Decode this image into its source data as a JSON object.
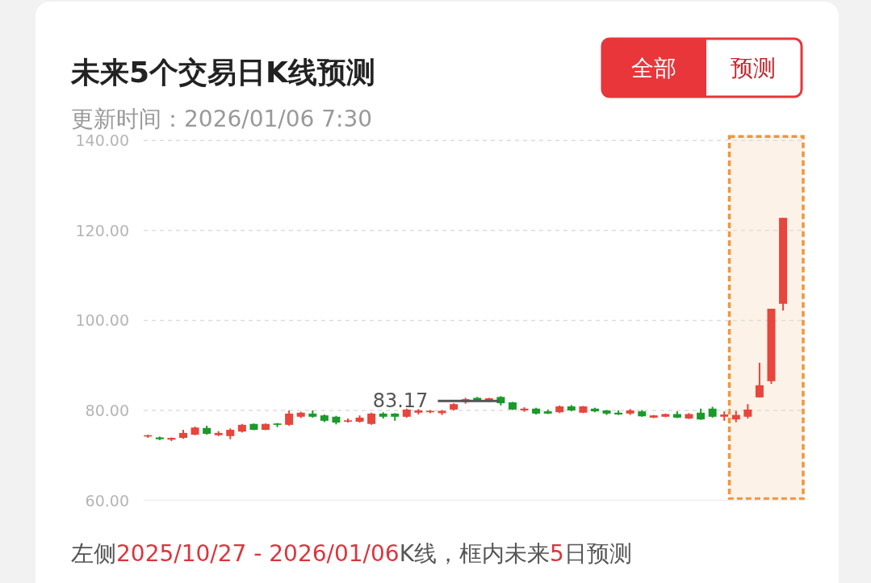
{
  "chart_data": {
    "type": "candlestick",
    "title": "未来5个交易日K线预测",
    "subtitle": "更新时间：2026/01/06 7:30",
    "categories": [
      null,
      null,
      null,
      null,
      null,
      null,
      null,
      null,
      null,
      null,
      null,
      null,
      null,
      null,
      null,
      null,
      null,
      null,
      null,
      null,
      null,
      null,
      null,
      null,
      null,
      null,
      null,
      null,
      null,
      null,
      null,
      null,
      null,
      null,
      null,
      null,
      null,
      null,
      null,
      null,
      null,
      null,
      null,
      null,
      null,
      null,
      null,
      null,
      null,
      null,
      null,
      null,
      null,
      null,
      null
    ],
    "ohlc": [
      [
        74.2,
        74.6,
        73.9,
        74.5
      ],
      [
        74.0,
        74.2,
        73.4,
        73.6
      ],
      [
        73.5,
        74.0,
        73.2,
        73.9
      ],
      [
        73.9,
        75.7,
        73.7,
        75.0
      ],
      [
        74.6,
        76.4,
        74.5,
        76.2
      ],
      [
        76.1,
        76.6,
        74.6,
        74.8
      ],
      [
        74.5,
        75.4,
        74.3,
        75.0
      ],
      [
        74.3,
        76.0,
        73.6,
        75.7
      ],
      [
        75.3,
        77.0,
        75.1,
        76.8
      ],
      [
        77.0,
        77.1,
        75.6,
        75.7
      ],
      [
        75.7,
        77.1,
        75.6,
        77.0
      ],
      [
        77.1,
        77.2,
        76.3,
        76.8
      ],
      [
        76.8,
        80.0,
        76.6,
        79.3
      ],
      [
        78.6,
        79.7,
        78.3,
        79.5
      ],
      [
        79.3,
        80.0,
        78.4,
        78.6
      ],
      [
        78.9,
        79.1,
        77.4,
        77.7
      ],
      [
        78.6,
        78.8,
        76.9,
        77.3
      ],
      [
        77.5,
        78.2,
        77.3,
        77.8
      ],
      [
        77.5,
        78.9,
        77.3,
        78.4
      ],
      [
        77.0,
        79.5,
        76.8,
        79.3
      ],
      [
        79.3,
        79.6,
        78.2,
        78.6
      ],
      [
        79.3,
        79.4,
        77.7,
        78.6
      ],
      [
        78.6,
        80.4,
        78.4,
        80.2
      ],
      [
        79.5,
        80.3,
        79.1,
        80.0
      ],
      [
        79.6,
        80.1,
        79.4,
        79.9
      ],
      [
        79.4,
        80.1,
        79.0,
        79.9
      ],
      [
        80.2,
        81.6,
        80.0,
        81.4
      ],
      [
        81.9,
        82.8,
        81.5,
        82.5
      ],
      [
        82.8,
        83.0,
        82.2,
        82.3
      ],
      [
        82.0,
        82.8,
        81.9,
        82.7
      ],
      [
        83.0,
        83.17,
        81.1,
        81.6
      ],
      [
        81.8,
        81.9,
        80.1,
        80.2
      ],
      [
        80.0,
        80.7,
        79.7,
        80.4
      ],
      [
        80.4,
        80.6,
        79.1,
        79.3
      ],
      [
        79.8,
        80.2,
        79.2,
        79.3
      ],
      [
        79.6,
        81.1,
        79.4,
        80.9
      ],
      [
        80.9,
        81.2,
        79.8,
        80.0
      ],
      [
        79.5,
        81.0,
        79.4,
        80.9
      ],
      [
        80.4,
        80.6,
        79.6,
        79.8
      ],
      [
        80.0,
        80.1,
        79.0,
        79.3
      ],
      [
        79.5,
        80.0,
        79.0,
        79.1
      ],
      [
        79.3,
        80.3,
        79.0,
        80.0
      ],
      [
        79.8,
        80.1,
        78.6,
        78.7
      ],
      [
        78.4,
        79.0,
        78.3,
        78.9
      ],
      [
        78.6,
        79.3,
        78.5,
        79.2
      ],
      [
        79.2,
        79.8,
        78.3,
        78.4
      ],
      [
        78.2,
        79.4,
        78.1,
        79.2
      ],
      [
        79.5,
        80.4,
        77.9,
        78.0
      ],
      [
        80.4,
        80.8,
        78.4,
        78.6
      ],
      [
        78.6,
        79.8,
        77.7,
        79.1
      ],
      [
        78.0,
        79.9,
        77.4,
        79.0
      ],
      [
        78.6,
        81.4,
        78.2,
        80.2
      ],
      [
        82.9,
        90.6,
        82.9,
        85.6
      ],
      [
        86.5,
        102.6,
        85.9,
        102.6
      ],
      [
        103.7,
        122.8,
        102.2,
        122.8
      ]
    ],
    "colors": [
      "#e8453c",
      "#1a9a2a",
      "#e8453c",
      "#e8453c",
      "#e8453c",
      "#1a9a2a",
      "#e8453c",
      "#e8453c",
      "#e8453c",
      "#1a9a2a",
      "#e8453c",
      "#1a9a2a",
      "#e8453c",
      "#e8453c",
      "#1a9a2a",
      "#1a9a2a",
      "#1a9a2a",
      "#e8453c",
      "#e8453c",
      "#e8453c",
      "#1a9a2a",
      "#1a9a2a",
      "#e8453c",
      "#e8453c",
      "#e8453c",
      "#e8453c",
      "#e8453c",
      "#e8453c",
      "#1a9a2a",
      "#e8453c",
      "#1a9a2a",
      "#1a9a2a",
      "#e8453c",
      "#1a9a2a",
      "#1a9a2a",
      "#e8453c",
      "#1a9a2a",
      "#e8453c",
      "#1a9a2a",
      "#1a9a2a",
      "#1a9a2a",
      "#e8453c",
      "#1a9a2a",
      "#e8453c",
      "#e8453c",
      "#1a9a2a",
      "#e8453c",
      "#1a9a2a",
      "#1a9a2a",
      "#e8453c",
      "#e8453c",
      "#e8453c",
      "#e8453c",
      "#e8453c",
      "#e8453c"
    ],
    "ylim": [
      60,
      140
    ],
    "yticks": [
      {
        "value": 60,
        "label": "60.00"
      },
      {
        "value": 80,
        "label": "80.00"
      },
      {
        "value": 100,
        "label": "100.00"
      },
      {
        "value": 120,
        "label": "120.00"
      },
      {
        "value": 140,
        "label": "140.00"
      }
    ],
    "grid": "y",
    "annotations": [
      "83.17",
      "全部",
      "预测",
      "左侧2025/10/27 - 2026/01/06K线，框内未来5日预测"
    ]
  }
}
